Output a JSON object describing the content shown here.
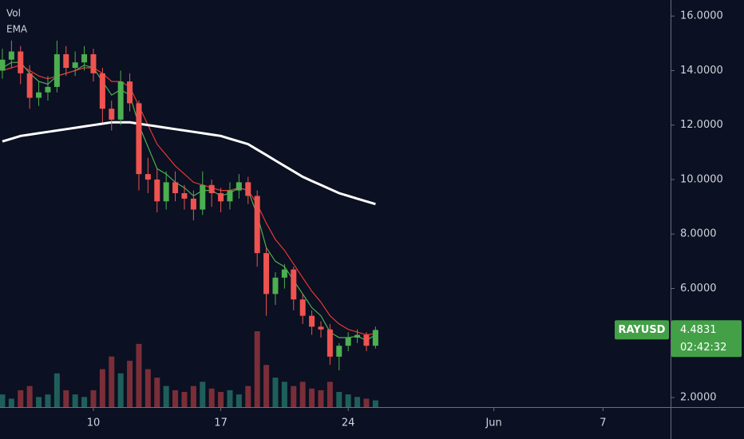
{
  "chart_data": {
    "type": "candlestick",
    "legend": [
      "Vol",
      "EMA"
    ],
    "x": [
      5,
      5.5,
      6,
      6.5,
      7,
      7.5,
      8,
      8.5,
      9,
      9.5,
      10,
      10.5,
      11,
      11.5,
      12,
      12.5,
      13,
      13.5,
      14,
      14.5,
      15,
      15.5,
      16,
      16.5,
      17,
      17.5,
      18,
      18.5,
      19,
      19.5,
      20,
      20.5,
      21,
      21.5,
      22,
      22.5,
      23,
      23.5,
      24,
      24.5,
      25,
      25.5
    ],
    "open": [
      14.0,
      14.4,
      14.7,
      13.9,
      13.0,
      13.2,
      13.4,
      14.6,
      14.1,
      14.3,
      14.6,
      13.9,
      12.6,
      12.2,
      13.6,
      12.8,
      10.2,
      10.0,
      9.2,
      9.9,
      9.5,
      9.3,
      8.9,
      9.8,
      9.5,
      9.2,
      9.6,
      9.9,
      9.4,
      7.3,
      5.8,
      6.4,
      6.7,
      5.6,
      5.0,
      4.6,
      4.5,
      3.5,
      3.9,
      4.2,
      4.3,
      3.9
    ],
    "high": [
      14.8,
      15.1,
      14.9,
      14.2,
      13.6,
      13.8,
      15.1,
      14.9,
      14.7,
      14.9,
      14.8,
      14.1,
      12.9,
      14.0,
      13.9,
      12.9,
      10.8,
      10.4,
      10.3,
      10.3,
      9.8,
      9.6,
      10.3,
      10.0,
      9.7,
      9.9,
      10.2,
      10.1,
      9.6,
      7.5,
      6.6,
      6.9,
      6.8,
      5.8,
      5.2,
      4.8,
      4.7,
      4.0,
      4.4,
      4.5,
      4.4,
      4.6
    ],
    "low": [
      13.7,
      14.1,
      13.5,
      12.6,
      12.7,
      12.9,
      13.2,
      13.8,
      13.8,
      14.0,
      13.6,
      12.1,
      11.8,
      12.0,
      12.5,
      9.6,
      9.5,
      8.8,
      8.9,
      9.2,
      8.9,
      8.5,
      8.7,
      9.0,
      8.8,
      8.9,
      9.3,
      9.1,
      6.8,
      5.0,
      5.4,
      6.0,
      5.2,
      4.7,
      4.3,
      4.2,
      3.2,
      3.0,
      3.7,
      4.0,
      3.7,
      3.8
    ],
    "close": [
      14.4,
      14.7,
      13.9,
      13.0,
      13.2,
      13.4,
      14.6,
      14.1,
      14.3,
      14.6,
      13.9,
      12.6,
      12.2,
      13.6,
      12.8,
      10.2,
      10.0,
      9.2,
      9.9,
      9.5,
      9.3,
      8.9,
      9.8,
      9.5,
      9.2,
      9.6,
      9.9,
      9.4,
      7.3,
      5.8,
      6.4,
      6.7,
      5.6,
      5.0,
      4.6,
      4.5,
      3.5,
      3.9,
      4.2,
      4.3,
      3.9,
      4.48
    ],
    "volume": [
      15,
      10,
      20,
      25,
      12,
      15,
      40,
      20,
      15,
      12,
      20,
      45,
      60,
      40,
      55,
      75,
      45,
      35,
      25,
      20,
      18,
      25,
      30,
      22,
      18,
      20,
      15,
      25,
      90,
      50,
      35,
      30,
      25,
      30,
      22,
      20,
      30,
      18,
      15,
      12,
      10,
      8
    ],
    "series": [
      {
        "color": "#4caf50",
        "values": [
          14.1,
          14.3,
          14.3,
          13.9,
          13.6,
          13.5,
          13.8,
          13.9,
          14.0,
          14.2,
          14.1,
          13.6,
          13.1,
          13.3,
          13.1,
          12.0,
          11.2,
          10.4,
          10.2,
          9.9,
          9.7,
          9.4,
          9.6,
          9.6,
          9.4,
          9.5,
          9.7,
          9.6,
          8.7,
          7.5,
          7.0,
          6.8,
          6.3,
          5.8,
          5.3,
          5.0,
          4.4,
          4.2,
          4.2,
          4.25,
          4.1,
          4.3
        ]
      },
      {
        "color": "#e53935",
        "values": [
          14.0,
          14.1,
          14.2,
          14.0,
          13.8,
          13.7,
          13.8,
          13.9,
          14.0,
          14.1,
          14.1,
          13.9,
          13.6,
          13.6,
          13.4,
          12.7,
          12.0,
          11.3,
          10.9,
          10.5,
          10.2,
          9.9,
          9.8,
          9.7,
          9.6,
          9.6,
          9.7,
          9.6,
          9.1,
          8.4,
          7.8,
          7.4,
          6.9,
          6.4,
          5.9,
          5.5,
          5.0,
          4.7,
          4.5,
          4.4,
          4.3,
          4.35
        ]
      },
      {
        "color": "#ffffff",
        "values": [
          11.4,
          11.5,
          11.6,
          11.65,
          11.7,
          11.75,
          11.8,
          11.85,
          11.9,
          11.95,
          12.0,
          12.05,
          12.1,
          12.1,
          12.1,
          12.05,
          12.0,
          11.95,
          11.9,
          11.85,
          11.8,
          11.75,
          11.7,
          11.65,
          11.6,
          11.5,
          11.4,
          11.3,
          11.1,
          10.9,
          10.7,
          10.5,
          10.3,
          10.1,
          9.95,
          9.8,
          9.65,
          9.5,
          9.4,
          9.3,
          9.2,
          9.1
        ]
      }
    ],
    "up_color": "#4caf50",
    "down_color": "#ef5350",
    "xlim": [
      4.87,
      41.71
    ],
    "xticks": [
      10,
      17,
      24,
      {
        "value": 32,
        "label": "Jun"
      },
      {
        "value": 38,
        "label": "7"
      }
    ],
    "ylim": [
      1.65,
      16.59
    ],
    "yticks": [
      {
        "value": 16,
        "label": "16.0000"
      },
      {
        "value": 14,
        "label": "14.0000"
      },
      {
        "value": 12,
        "label": "12.0000"
      },
      {
        "value": 10,
        "label": "10.0000"
      },
      {
        "value": 8,
        "label": "8.0000"
      },
      {
        "value": 6,
        "label": "6.0000"
      },
      {
        "value": 2,
        "label": "2.0000"
      }
    ],
    "symbol": "RAYUSD",
    "last_price": {
      "value": 4.4831,
      "label": "4.4831"
    },
    "countdown": "02:42:32"
  }
}
